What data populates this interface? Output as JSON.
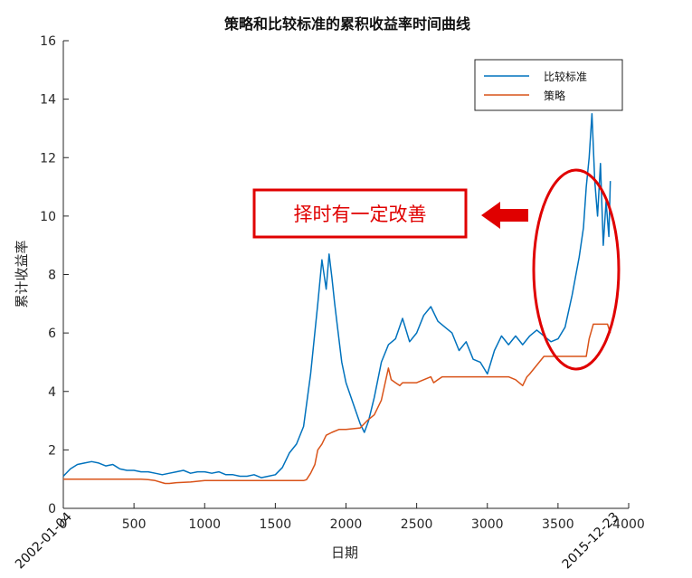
{
  "chart_data": {
    "type": "line",
    "title": "策略和比较标准的累积收益率时间曲线",
    "xlabel": "日期",
    "ylabel": "累计收益率",
    "xlim": [
      0,
      4000
    ],
    "ylim": [
      0,
      16
    ],
    "xticks": [
      0,
      500,
      1000,
      1500,
      2000,
      2500,
      3000,
      3500,
      4000
    ],
    "yticks": [
      0,
      2,
      4,
      6,
      8,
      10,
      12,
      14,
      16
    ],
    "date_labels": [
      {
        "x": 0,
        "text": "2002-01-04"
      },
      {
        "x": 3870,
        "text": "2015-12-23"
      }
    ],
    "legend": "top-right",
    "series": [
      {
        "name": "比较标准",
        "color": "#0072bd",
        "x": [
          0,
          50,
          100,
          150,
          200,
          250,
          300,
          350,
          400,
          450,
          500,
          550,
          600,
          650,
          700,
          750,
          800,
          850,
          900,
          950,
          1000,
          1050,
          1100,
          1150,
          1200,
          1250,
          1300,
          1350,
          1400,
          1450,
          1500,
          1550,
          1600,
          1650,
          1700,
          1750,
          1800,
          1830,
          1860,
          1880,
          1900,
          1920,
          1940,
          1970,
          2000,
          2050,
          2100,
          2130,
          2160,
          2200,
          2250,
          2300,
          2350,
          2400,
          2450,
          2500,
          2550,
          2600,
          2650,
          2700,
          2750,
          2800,
          2850,
          2900,
          2950,
          3000,
          3050,
          3100,
          3150,
          3200,
          3250,
          3300,
          3350,
          3400,
          3450,
          3500,
          3550,
          3600,
          3650,
          3680,
          3700,
          3720,
          3740,
          3760,
          3780,
          3800,
          3820,
          3840,
          3860,
          3870
        ],
        "values": [
          1.1,
          1.35,
          1.5,
          1.55,
          1.6,
          1.55,
          1.45,
          1.5,
          1.35,
          1.3,
          1.3,
          1.25,
          1.25,
          1.2,
          1.15,
          1.2,
          1.25,
          1.3,
          1.2,
          1.25,
          1.25,
          1.2,
          1.25,
          1.15,
          1.15,
          1.1,
          1.1,
          1.15,
          1.05,
          1.1,
          1.15,
          1.4,
          1.9,
          2.2,
          2.8,
          4.6,
          7.0,
          8.5,
          7.5,
          8.7,
          7.9,
          7.0,
          6.2,
          5.0,
          4.3,
          3.6,
          2.9,
          2.6,
          3.0,
          3.8,
          5.0,
          5.6,
          5.8,
          6.5,
          5.7,
          6.0,
          6.6,
          6.9,
          6.4,
          6.2,
          6.0,
          5.4,
          5.7,
          5.1,
          5.0,
          4.6,
          5.4,
          5.9,
          5.6,
          5.9,
          5.6,
          5.9,
          6.1,
          5.9,
          5.7,
          5.8,
          6.2,
          7.3,
          8.6,
          9.6,
          11.0,
          12.0,
          13.5,
          11.2,
          10.0,
          11.8,
          9.0,
          10.5,
          9.3,
          11.2
        ]
      },
      {
        "name": "策略",
        "color": "#d95319",
        "x": [
          0,
          400,
          550,
          600,
          650,
          700,
          720,
          750,
          800,
          900,
          1000,
          1200,
          1400,
          1600,
          1650,
          1700,
          1720,
          1750,
          1780,
          1800,
          1830,
          1860,
          1900,
          1950,
          2000,
          2100,
          2150,
          2200,
          2250,
          2300,
          2320,
          2350,
          2380,
          2400,
          2500,
          2600,
          2620,
          2650,
          2680,
          2700,
          2800,
          3000,
          3150,
          3200,
          3250,
          3280,
          3300,
          3400,
          3500,
          3600,
          3700,
          3720,
          3750,
          3800,
          3850,
          3870
        ],
        "values": [
          1.0,
          1.0,
          1.0,
          0.98,
          0.95,
          0.88,
          0.85,
          0.85,
          0.88,
          0.9,
          0.95,
          0.95,
          0.95,
          0.95,
          0.95,
          0.95,
          0.98,
          1.2,
          1.5,
          2.0,
          2.2,
          2.5,
          2.6,
          2.7,
          2.7,
          2.75,
          3.0,
          3.2,
          3.7,
          4.8,
          4.4,
          4.3,
          4.2,
          4.3,
          4.3,
          4.5,
          4.3,
          4.4,
          4.5,
          4.5,
          4.5,
          4.5,
          4.5,
          4.4,
          4.2,
          4.5,
          4.6,
          5.2,
          5.2,
          5.2,
          5.2,
          5.8,
          6.3,
          6.3,
          6.3,
          6.0
        ]
      }
    ]
  },
  "annotation": {
    "text": "择时有一定改善",
    "color": "#e00000"
  }
}
